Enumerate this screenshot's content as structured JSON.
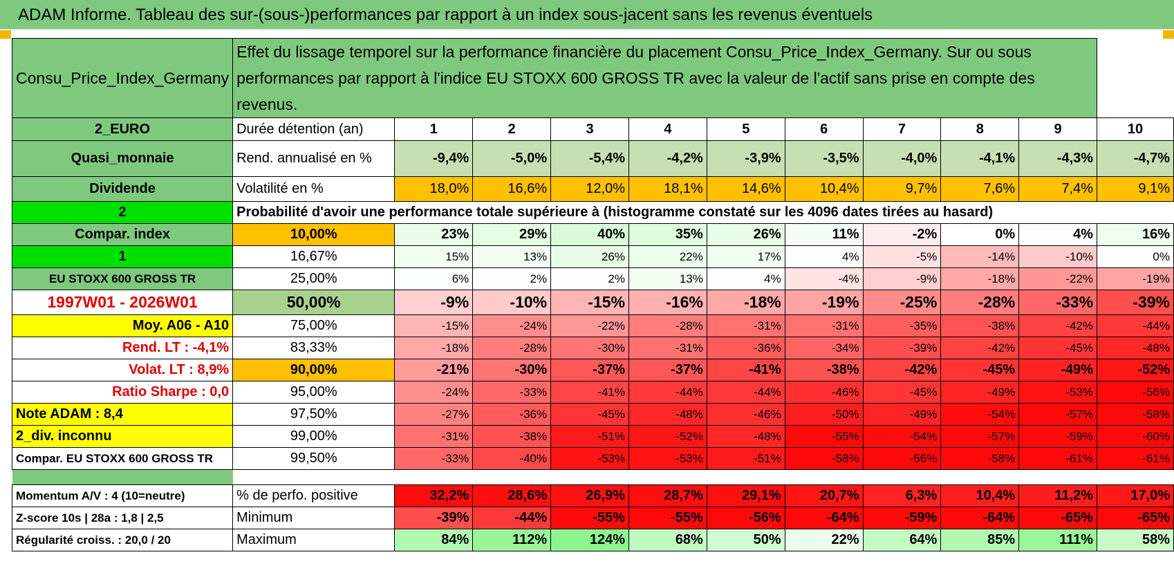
{
  "title": "ADAM Informe. Tableau des sur-(sous-)performances par rapport à un index sous-jacent sans les revenus éventuels",
  "header": {
    "asset": "Consu_Price_Index_Germany",
    "description": "Effet du lissage temporel sur la performance financière du placement Consu_Price_Index_Germany. Sur ou sous performances par rapport à l'indice EU STOXX 600 GROSS TR avec la valeur de l'actif sans prise en compte des revenus."
  },
  "years": [
    "1",
    "2",
    "3",
    "4",
    "5",
    "6",
    "7",
    "8",
    "9",
    "10"
  ],
  "rows": [
    {
      "left": "2_EURO",
      "label": "Durée détention (an)",
      "type": "years"
    },
    {
      "left": "Quasi_monnaie",
      "label": "Rend. annualisé en %",
      "values": [
        "-9,4%",
        "-5,0%",
        "-5,4%",
        "-4,2%",
        "-3,9%",
        "-3,5%",
        "-4,0%",
        "-4,1%",
        "-4,3%",
        "-4,7%"
      ]
    },
    {
      "left": "Dividende",
      "label": "Volatilité en %",
      "values": [
        "18,0%",
        "16,6%",
        "12,0%",
        "18,1%",
        "14,6%",
        "10,4%",
        "9,7%",
        "7,6%",
        "7,4%",
        "9,1%"
      ]
    },
    {
      "left": "2",
      "label": "Probabilité d'avoir une performance totale supérieure à (histogramme constaté sur les 4096 dates tirées au hasard)",
      "type": "prob"
    },
    {
      "left": "Compar. index",
      "label": "10,00%",
      "values": [
        "23%",
        "29%",
        "40%",
        "35%",
        "26%",
        "11%",
        "-2%",
        "0%",
        "4%",
        "16%"
      ]
    },
    {
      "left": "1",
      "label": "16,67%",
      "values": [
        "15%",
        "13%",
        "26%",
        "22%",
        "17%",
        "4%",
        "-5%",
        "-14%",
        "-10%",
        "0%"
      ]
    },
    {
      "left": "EU STOXX 600 GROSS TR",
      "label": "25,00%",
      "values": [
        "6%",
        "2%",
        "2%",
        "13%",
        "4%",
        "-4%",
        "-9%",
        "-18%",
        "-22%",
        "-19%"
      ]
    },
    {
      "left": "1997W01 - 2026W01",
      "label": "50,00%",
      "values": [
        "-9%",
        "-10%",
        "-15%",
        "-16%",
        "-18%",
        "-19%",
        "-25%",
        "-28%",
        "-33%",
        "-39%"
      ]
    },
    {
      "left": "Moy. A06 - A10",
      "label": "75,00%",
      "values": [
        "-15%",
        "-24%",
        "-22%",
        "-28%",
        "-31%",
        "-31%",
        "-35%",
        "-38%",
        "-42%",
        "-44%"
      ]
    },
    {
      "left": "Rend. LT :    -4,1%",
      "label": "83,33%",
      "values": [
        "-18%",
        "-28%",
        "-30%",
        "-31%",
        "-36%",
        "-34%",
        "-39%",
        "-42%",
        "-45%",
        "-48%"
      ]
    },
    {
      "left": "Volat. LT :    8,9%",
      "label": "90,00%",
      "values": [
        "-21%",
        "-30%",
        "-37%",
        "-37%",
        "-41%",
        "-38%",
        "-42%",
        "-45%",
        "-49%",
        "-52%"
      ]
    },
    {
      "left": "Ratio Sharpe :     0,0",
      "label": "95,00%",
      "values": [
        "-24%",
        "-33%",
        "-41%",
        "-44%",
        "-44%",
        "-46%",
        "-45%",
        "-49%",
        "-53%",
        "-56%"
      ]
    },
    {
      "left": "Note ADAM : 8,4",
      "label": "97,50%",
      "values": [
        "-27%",
        "-36%",
        "-45%",
        "-48%",
        "-46%",
        "-50%",
        "-49%",
        "-54%",
        "-57%",
        "-58%"
      ]
    },
    {
      "left": "2_div. inconnu",
      "label": "99,00%",
      "values": [
        "-31%",
        "-38%",
        "-51%",
        "-52%",
        "-48%",
        "-55%",
        "-54%",
        "-57%",
        "-59%",
        "-60%"
      ]
    },
    {
      "left": "Compar. EU STOXX 600 GROSS TR",
      "label": "99,50%",
      "values": [
        "-33%",
        "-40%",
        "-53%",
        "-53%",
        "-51%",
        "-58%",
        "-56%",
        "-58%",
        "-61%",
        "-61%"
      ]
    }
  ],
  "bottom_rows": [
    {
      "left": "Momentum A/V : 4 (10=neutre)",
      "label": "% de perfo. positive",
      "values": [
        "32,2%",
        "28,6%",
        "26,9%",
        "28,7%",
        "29,1%",
        "20,7%",
        "6,3%",
        "10,4%",
        "11,2%",
        "17,0%"
      ]
    },
    {
      "left": "Z-score 10s | 28a : 1,8 | 2,5",
      "label": "Minimum",
      "values": [
        "-39%",
        "-44%",
        "-55%",
        "-55%",
        "-56%",
        "-64%",
        "-59%",
        "-64%",
        "-65%",
        "-65%"
      ]
    },
    {
      "left": "Régularité croiss. : 20,0 / 20",
      "label": "Maximum",
      "values": [
        "84%",
        "112%",
        "124%",
        "68%",
        "50%",
        "22%",
        "64%",
        "85%",
        "111%",
        "58%"
      ]
    }
  ],
  "colors": {
    "green": "#7fc97f",
    "bright_green": "#00e000",
    "yellow": "#ffff00",
    "orange": "#ffc000",
    "red_text": "#e00000"
  }
}
